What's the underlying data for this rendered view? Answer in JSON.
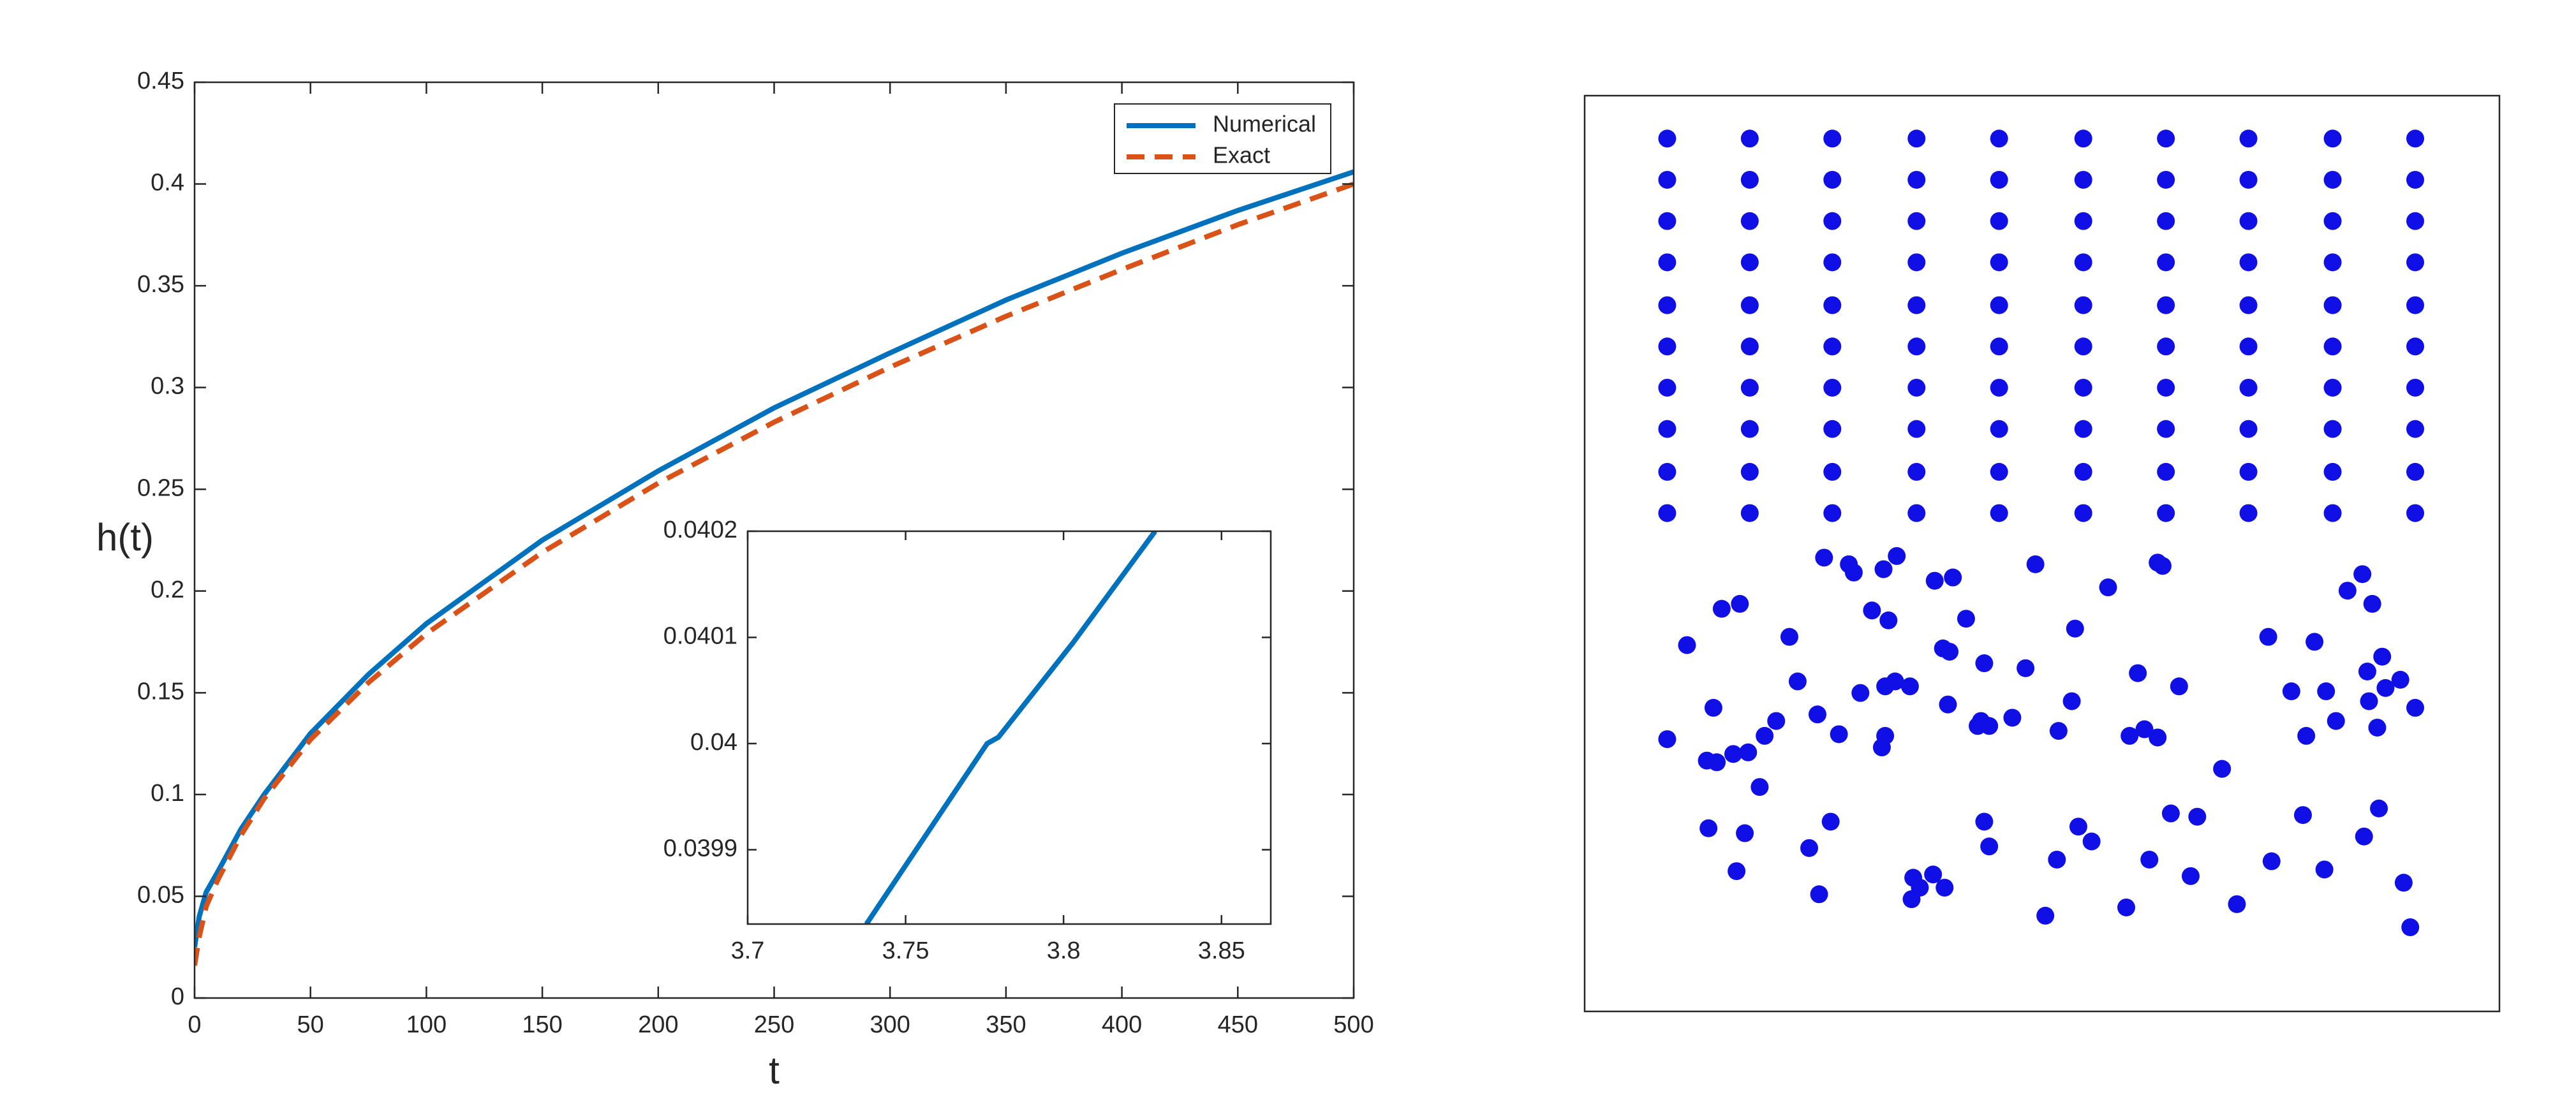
{
  "chart_data": [
    {
      "type": "line",
      "xlabel": "t",
      "ylabel": "h(t)",
      "x": [
        0,
        2,
        5,
        10,
        20,
        30,
        50,
        75,
        100,
        150,
        200,
        250,
        300,
        350,
        400,
        450,
        500
      ],
      "series": [
        {
          "name": "Numerical",
          "color": "#0072BD",
          "dash": false,
          "values": [
            0.025,
            0.04,
            0.052,
            0.062,
            0.083,
            0.1,
            0.13,
            0.159,
            0.184,
            0.225,
            0.259,
            0.29,
            0.317,
            0.343,
            0.366,
            0.387,
            0.406
          ]
        },
        {
          "name": "Exact",
          "color": "#D95319",
          "dash": true,
          "values": [
            0.016,
            0.03,
            0.045,
            0.058,
            0.08,
            0.098,
            0.127,
            0.155,
            0.179,
            0.219,
            0.253,
            0.283,
            0.31,
            0.335,
            0.358,
            0.38,
            0.4
          ]
        }
      ],
      "xlim": [
        0,
        500
      ],
      "xticks": [
        0,
        50,
        100,
        150,
        200,
        250,
        300,
        350,
        400,
        450,
        500
      ],
      "ylim": [
        0,
        0.45
      ],
      "yticks": [
        0,
        0.05,
        0.1,
        0.15,
        0.2,
        0.25,
        0.3,
        0.35,
        0.4,
        0.45
      ],
      "legend": "northeast"
    },
    {
      "type": "line",
      "x": [
        3.7376,
        3.7758,
        3.7794,
        3.803,
        3.829
      ],
      "series": [
        {
          "color": "#0072BD",
          "dash": false,
          "values": [
            0.03983,
            0.04,
            0.040006,
            0.040095,
            0.0402
          ]
        }
      ],
      "xlim": [
        3.7,
        3.8656
      ],
      "xticks": [
        3.7,
        3.75,
        3.8,
        3.85
      ],
      "ylim": [
        0.03983,
        0.0402
      ],
      "yticks": [
        0.0399,
        0.04,
        0.0401,
        0.0402
      ]
    },
    {
      "type": "scatter",
      "color": "#1010e6",
      "xlim": [
        0,
        554
      ],
      "ylim": [
        0,
        555
      ],
      "x": [
        50,
        100,
        150,
        201,
        251,
        302,
        352,
        402,
        453,
        503,
        50,
        100,
        150,
        201,
        251,
        302,
        352,
        402,
        453,
        503,
        50,
        100,
        150,
        201,
        251,
        302,
        352,
        402,
        453,
        503,
        50,
        100,
        150,
        201,
        251,
        302,
        352,
        402,
        453,
        503,
        50,
        100,
        150,
        201,
        251,
        302,
        352,
        402,
        453,
        503,
        50,
        100,
        150,
        201,
        251,
        302,
        352,
        402,
        453,
        503,
        50,
        100,
        150,
        201,
        251,
        302,
        352,
        402,
        453,
        503,
        50,
        100,
        150,
        201,
        251,
        302,
        352,
        402,
        453,
        503,
        50,
        100,
        150,
        201,
        251,
        302,
        352,
        402,
        453,
        503,
        50,
        100,
        150,
        201,
        251,
        302,
        352,
        402,
        453,
        503,
        145,
        160,
        163,
        181,
        189,
        212,
        223,
        273,
        317,
        347,
        350,
        462,
        471,
        477,
        83,
        94,
        62,
        124,
        174,
        184,
        231,
        297,
        414,
        442,
        217,
        221,
        483,
        242,
        267,
        335,
        360,
        428,
        449,
        474,
        485,
        494,
        129,
        167,
        182,
        188,
        197,
        295,
        475,
        503,
        78,
        141,
        116,
        220,
        240,
        245,
        238,
        259,
        339,
        330,
        347,
        287,
        437,
        455,
        480,
        50,
        109,
        154,
        182,
        180,
        74,
        80,
        90,
        99,
        386,
        106,
        75,
        97,
        149,
        242,
        299,
        307,
        355,
        371,
        435,
        481,
        472,
        136,
        245,
        92,
        286,
        342,
        367,
        416,
        448,
        199,
        211,
        203,
        218,
        198,
        142,
        496,
        279,
        328,
        395,
        500
      ],
      "y": [
        529,
        529,
        529,
        529,
        529,
        529,
        529,
        529,
        529,
        529,
        504,
        504,
        504,
        504,
        504,
        504,
        504,
        504,
        504,
        504,
        479,
        479,
        479,
        479,
        479,
        479,
        479,
        479,
        479,
        479,
        454,
        454,
        454,
        454,
        454,
        454,
        454,
        454,
        454,
        454,
        428,
        428,
        428,
        428,
        428,
        428,
        428,
        428,
        428,
        428,
        403,
        403,
        403,
        403,
        403,
        403,
        403,
        403,
        403,
        403,
        378,
        378,
        378,
        378,
        378,
        378,
        378,
        378,
        378,
        378,
        353,
        353,
        353,
        353,
        353,
        353,
        353,
        353,
        353,
        353,
        327,
        327,
        327,
        327,
        327,
        327,
        327,
        327,
        327,
        327,
        302,
        302,
        302,
        302,
        302,
        302,
        302,
        302,
        302,
        302,
        275,
        271,
        266,
        268,
        276,
        261,
        263,
        271,
        257,
        272,
        270,
        255,
        265,
        247,
        244,
        247,
        222,
        227,
        243,
        237,
        238,
        232,
        227,
        224,
        220,
        218,
        215,
        211,
        208,
        205,
        197,
        194,
        194,
        206,
        196,
        201,
        200,
        193,
        197,
        200,
        197,
        188,
        188,
        184,
        184,
        180,
        176,
        186,
        176,
        173,
        173,
        178,
        171,
        167,
        166,
        170,
        167,
        176,
        172,
        165,
        167,
        168,
        167,
        160,
        152,
        151,
        156,
        157,
        147,
        136,
        111,
        108,
        115,
        115,
        112,
        103,
        120,
        118,
        119,
        123,
        106,
        99,
        100,
        85,
        92,
        92,
        82,
        91,
        86,
        81,
        83,
        75,
        75,
        68,
        71,
        78,
        58,
        63,
        65,
        51
      ]
    }
  ]
}
